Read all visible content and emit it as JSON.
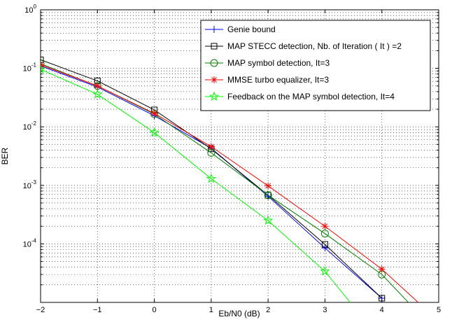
{
  "chart_data": {
    "type": "line",
    "title": "",
    "xlabel": "Eb/N0 (dB)",
    "ylabel": "BER",
    "xlim": [
      -2,
      5
    ],
    "ylim": [
      1e-05,
      1
    ],
    "yscale": "log",
    "grid": true,
    "legend_position": "top-right",
    "x_ticks": [
      -2,
      -1,
      0,
      1,
      2,
      3,
      4,
      5
    ],
    "x_tick_labels": [
      "−2",
      "−1",
      "0",
      "1",
      "2",
      "3",
      "4",
      "5"
    ],
    "y_ticks": [
      {
        "value": 1,
        "base": "10",
        "exp": "0"
      },
      {
        "value": 0.1,
        "base": "10",
        "exp": "-1"
      },
      {
        "value": 0.01,
        "base": "10",
        "exp": "-2"
      },
      {
        "value": 0.001,
        "base": "10",
        "exp": "-3"
      },
      {
        "value": 0.0001,
        "base": "10",
        "exp": "-4"
      }
    ],
    "series": [
      {
        "name": "Genie bound",
        "color": "#0000ff",
        "marker": "plus",
        "x": [
          -2,
          -1,
          0,
          1,
          2,
          3,
          4
        ],
        "y": [
          0.11,
          0.048,
          0.0155,
          0.0043,
          0.00065,
          8.5e-05,
          1.18e-05
        ]
      },
      {
        "name": "MAP STECC detection, Nb. of Iteration ( It ) =2",
        "color": "#000000",
        "marker": "square",
        "x": [
          -2,
          -1,
          0,
          1,
          2,
          3,
          4
        ],
        "y": [
          0.14,
          0.061,
          0.0195,
          0.0042,
          0.00068,
          9.8e-05,
          1.18e-05
        ]
      },
      {
        "name": "MAP symbol detection, It=3",
        "color": "#007f00",
        "marker": "circle",
        "x": [
          -2,
          -1,
          0,
          1,
          2,
          3,
          4,
          4.6
        ],
        "y": [
          0.12,
          0.05,
          0.0165,
          0.0036,
          0.00068,
          0.00015,
          3e-05,
          7.3e-06
        ]
      },
      {
        "name": "MMSE turbo equalizer, It=3",
        "color": "#ff0000",
        "marker": "star",
        "x": [
          -2,
          -1,
          0,
          1,
          2,
          3,
          4,
          4.8
        ],
        "y": [
          0.115,
          0.05,
          0.017,
          0.0046,
          0.00098,
          0.0002,
          3.7e-05,
          7.2e-06
        ]
      },
      {
        "name": "Feedback on the MAP symbol detection, It=4",
        "color": "#00ff00",
        "marker": "pentagram",
        "x": [
          -2,
          -1,
          0,
          1,
          2,
          3,
          3.6
        ],
        "y": [
          0.096,
          0.036,
          0.008,
          0.0013,
          0.00025,
          3.4e-05,
          6.5e-06
        ]
      }
    ]
  }
}
